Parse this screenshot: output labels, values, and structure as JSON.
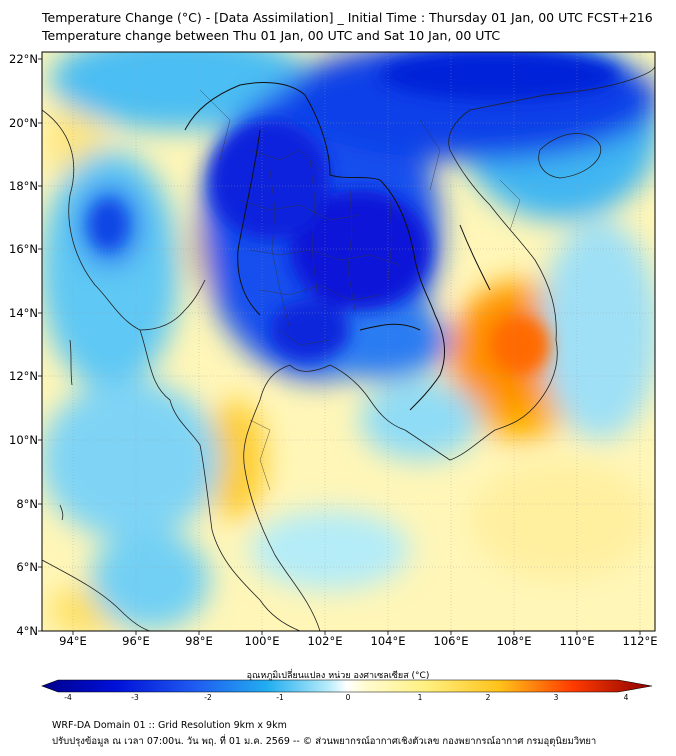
{
  "title_line1": "Temperature Change (°C) - [Data Assimilation] _ Initial Time : Thursday 01 Jan, 00 UTC FCST+216",
  "title_line2": "Temperature change between Thu 01 Jan, 00 UTC and Sat 10 Jan, 00 UTC",
  "lat_labels": [
    "22°N",
    "20°N",
    "18°N",
    "16°N",
    "14°N",
    "12°N",
    "10°N",
    "8°N",
    "6°N",
    "4°N"
  ],
  "lon_labels": [
    "94°E",
    "96°E",
    "98°E",
    "100°E",
    "102°E",
    "104°E",
    "106°E",
    "108°E",
    "110°E",
    "112°E"
  ],
  "colorbar": {
    "label": "อุณหภูมิเปลี่ยนแปลง หน่วย องศาเซลเซียส (°C)",
    "ticks": [
      "-4",
      "-3",
      "-2",
      "-1",
      "0",
      "1",
      "2",
      "3",
      "4"
    ],
    "range": [
      -4,
      4
    ]
  },
  "footer_line1": "WRF-DA Domain 01 :: Grid Resolution 9km x 9km",
  "footer_line2": "ปรับปรุงข้อมูล ณ เวลา 07:00น. วัน พฤ. ที่ 01 ม.ค. 2569 -- © ส่วนพยากรณ์อากาศเชิงตัวเลข กองพยากรณ์อากาศ กรมอุตุนิยมวิทยา",
  "colors": {
    "cold_strong": "#0020e0",
    "cold": "#0a7ff0",
    "cool": "#5cc8f2",
    "neutral": "#ffffff",
    "warm": "#fff2a0",
    "warmer": "#ffd230",
    "hot": "#ff6a00"
  }
}
